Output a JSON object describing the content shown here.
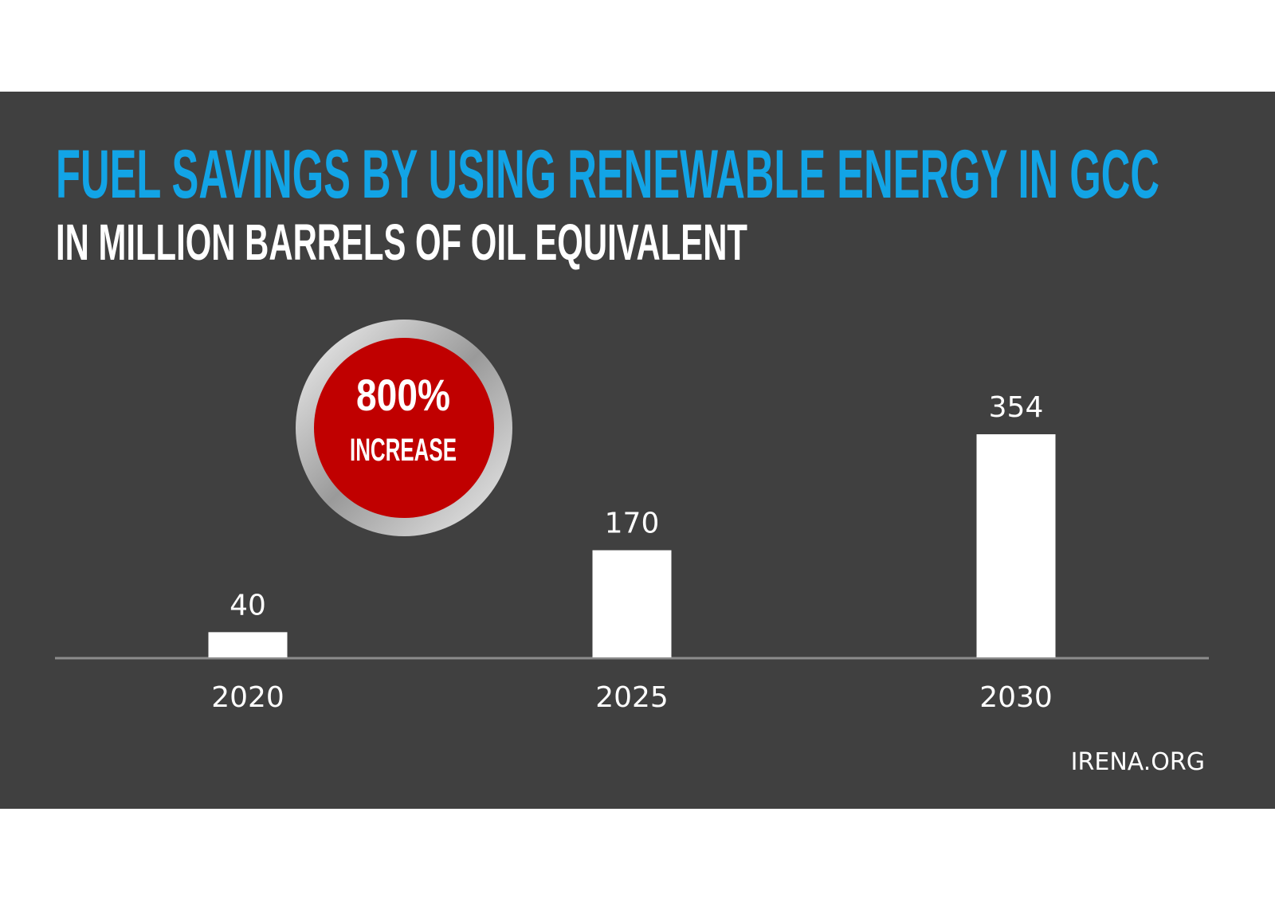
{
  "chart_data": {
    "type": "bar",
    "title": "FUEL SAVINGS BY USING RENEWABLE ENERGY IN GCC",
    "subtitle": "IN MILLION BARRELS OF OIL EQUIVALENT",
    "categories": [
      "2020",
      "2025",
      "2030"
    ],
    "values": [
      40,
      170,
      354
    ],
    "color": "#ffffff",
    "annotation": [
      "800%",
      "INCREASE"
    ],
    "source": "IRENA.ORG"
  }
}
